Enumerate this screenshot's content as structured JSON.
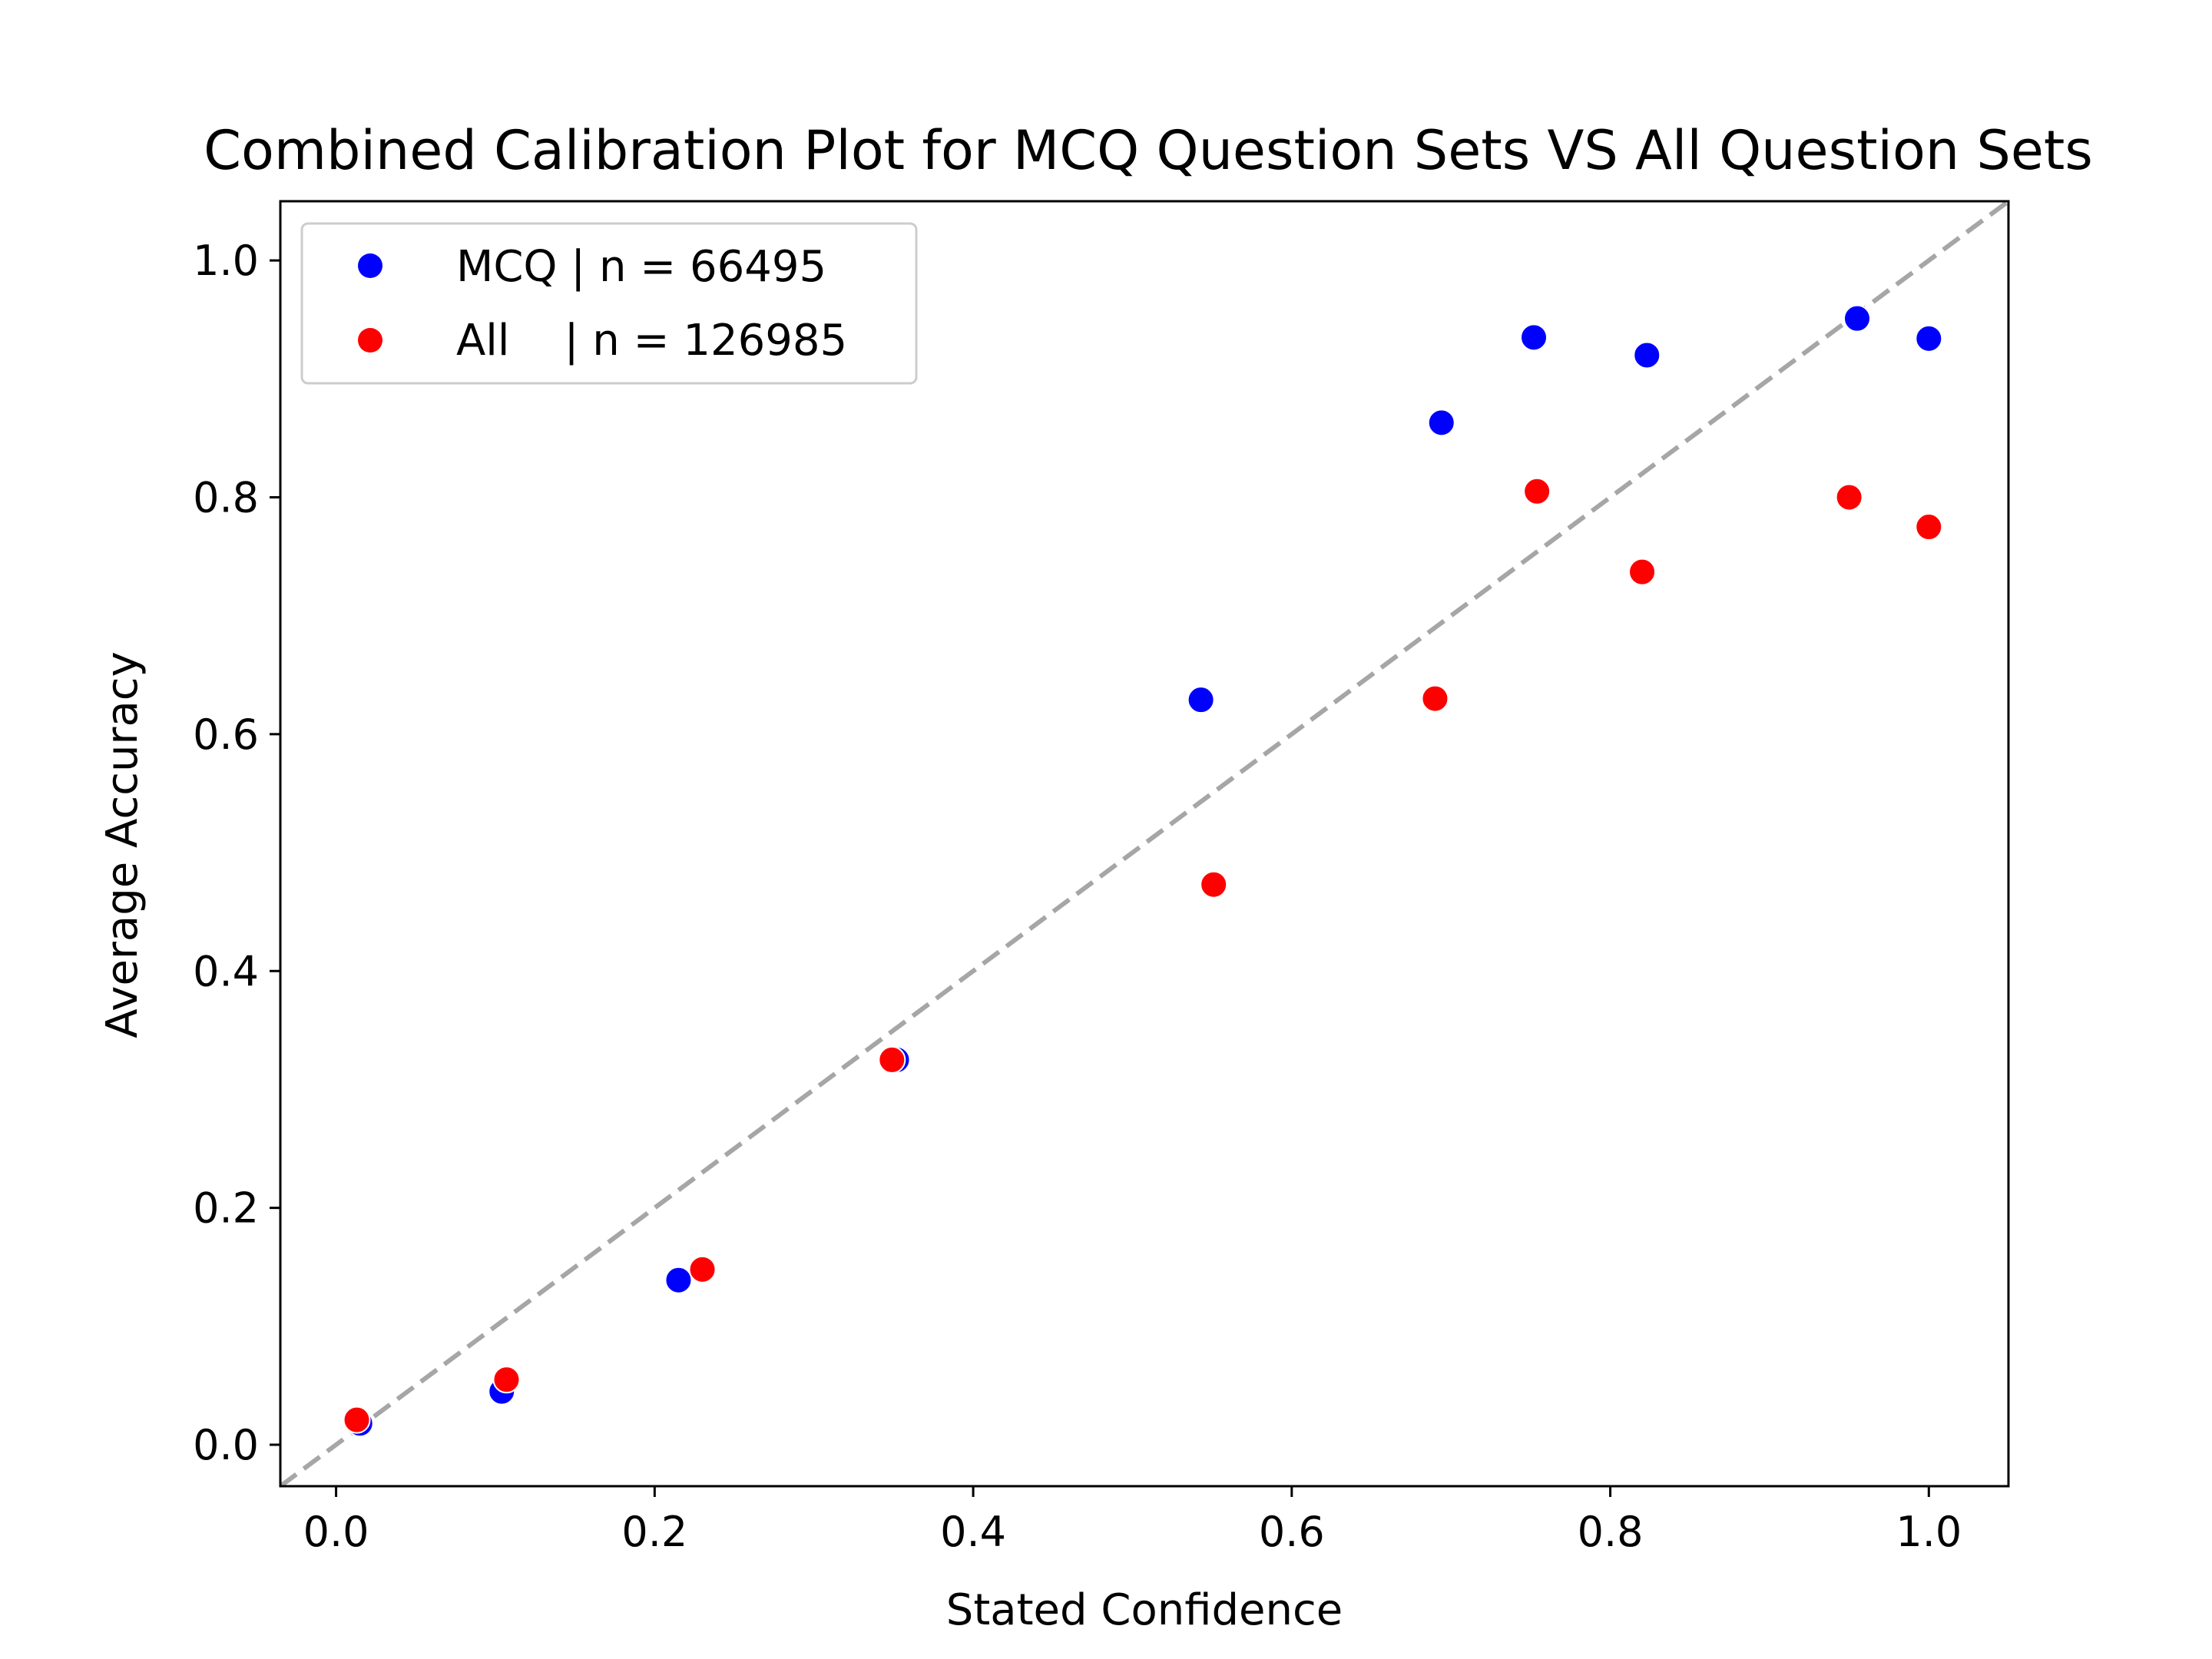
{
  "chart_data": {
    "type": "scatter",
    "title": "Combined Calibration Plot for MCQ Question Sets VS All Question Sets",
    "xlabel": "Stated Confidence",
    "ylabel": "Average Accuracy",
    "xlim": [
      -0.035,
      1.05
    ],
    "ylim": [
      -0.035,
      1.05
    ],
    "xticks": [
      "0.0",
      "0.2",
      "0.4",
      "0.6",
      "0.8",
      "1.0"
    ],
    "yticks": [
      "0.0",
      "0.2",
      "0.4",
      "0.6",
      "0.8",
      "1.0"
    ],
    "grid": false,
    "legend_position": "top-left",
    "reference_line": {
      "style": "dashed",
      "color": "#a6a6a6",
      "from": [
        -0.035,
        -0.035
      ],
      "to": [
        1.05,
        1.05
      ]
    },
    "series": [
      {
        "name": "MCQ | n = 66495",
        "color": "#0000ff",
        "x": [
          0.015,
          0.104,
          0.215,
          0.352,
          0.543,
          0.694,
          0.752,
          0.823,
          0.955,
          1.0
        ],
        "y": [
          0.018,
          0.045,
          0.139,
          0.325,
          0.629,
          0.863,
          0.935,
          0.92,
          0.951,
          0.934
        ]
      },
      {
        "name": "All    | n = 126985",
        "color": "#ff0000",
        "x": [
          0.013,
          0.107,
          0.23,
          0.349,
          0.551,
          0.69,
          0.754,
          0.82,
          0.95,
          1.0
        ],
        "y": [
          0.021,
          0.055,
          0.148,
          0.325,
          0.473,
          0.63,
          0.805,
          0.737,
          0.8,
          0.775
        ]
      }
    ]
  }
}
